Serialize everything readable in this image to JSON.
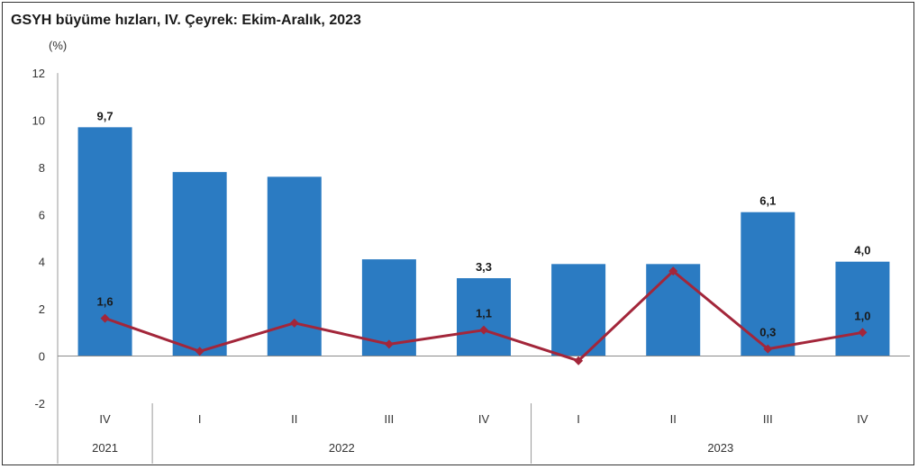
{
  "chart_data": {
    "type": "bar",
    "title": "GSYH büyüme hızları, IV. Çeyrek: Ekim-Aralık, 2023",
    "unit": "(%)",
    "ylim": [
      -2,
      12
    ],
    "yticks": [
      12,
      10,
      8,
      6,
      4,
      2,
      0,
      -2
    ],
    "categories": [
      "IV",
      "I",
      "II",
      "III",
      "IV",
      "I",
      "II",
      "III",
      "IV"
    ],
    "year_groups": [
      {
        "label": "2021",
        "start": 0,
        "end": 0
      },
      {
        "label": "2022",
        "start": 1,
        "end": 4
      },
      {
        "label": "2023",
        "start": 5,
        "end": 8
      }
    ],
    "series": [
      {
        "kind": "bar",
        "color": "#2b7bc2",
        "values": [
          9.7,
          7.8,
          7.6,
          4.1,
          3.3,
          3.9,
          3.9,
          6.1,
          4.0
        ],
        "labels": [
          "9,7",
          "",
          "",
          "",
          "3,3",
          "",
          "",
          "6,1",
          "4,0"
        ]
      },
      {
        "kind": "line",
        "color": "#a3263a",
        "values": [
          1.6,
          0.2,
          1.4,
          0.5,
          1.1,
          -0.2,
          3.6,
          0.3,
          1.0
        ],
        "labels": [
          "1,6",
          "",
          "",
          "",
          "1,1",
          "",
          "",
          "0,3",
          "1,0"
        ]
      }
    ]
  }
}
